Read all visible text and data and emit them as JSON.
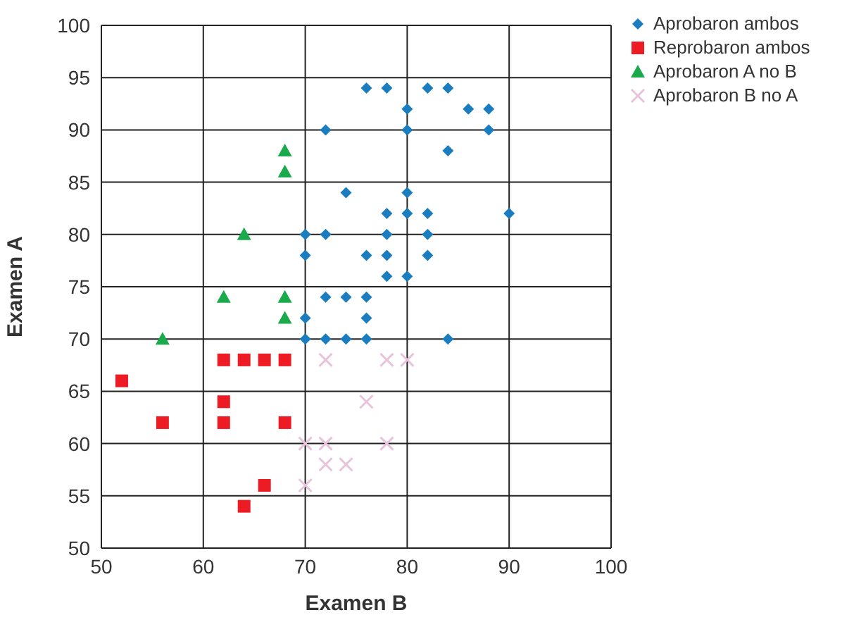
{
  "chart_data": {
    "type": "scatter",
    "xlabel": "Examen B",
    "ylabel": "Examen A",
    "xlim": [
      50,
      100
    ],
    "ylim": [
      50,
      100
    ],
    "xticks": [
      50,
      60,
      70,
      80,
      90,
      100
    ],
    "yticks": [
      50,
      55,
      60,
      65,
      70,
      75,
      80,
      85,
      90,
      95,
      100
    ],
    "grid": true,
    "legend": "right",
    "series": [
      {
        "name": "Aprobaron ambos",
        "color": "#1a7dc0",
        "marker": "diamond",
        "x": [
          76,
          78,
          82,
          84,
          80,
          86,
          88,
          72,
          80,
          88,
          84,
          74,
          80,
          78,
          80,
          82,
          90,
          70,
          72,
          78,
          82,
          70,
          76,
          78,
          82,
          78,
          80,
          72,
          74,
          76,
          70,
          76,
          70,
          72,
          74,
          76,
          84
        ],
        "values": [
          94,
          94,
          94,
          94,
          92,
          92,
          92,
          90,
          90,
          90,
          88,
          84,
          84,
          82,
          82,
          82,
          82,
          80,
          80,
          80,
          80,
          78,
          78,
          78,
          78,
          76,
          76,
          74,
          74,
          74,
          72,
          72,
          70,
          70,
          70,
          70,
          70
        ]
      },
      {
        "name": "Reprobaron ambos",
        "color": "#ed1c24",
        "marker": "square",
        "x": [
          62,
          64,
          66,
          68,
          52,
          62,
          56,
          62,
          68,
          66,
          64
        ],
        "values": [
          68,
          68,
          68,
          68,
          66,
          64,
          62,
          62,
          62,
          56,
          54
        ]
      },
      {
        "name": "Aprobaron A no B",
        "color": "#1aaa4b",
        "marker": "triangle",
        "x": [
          68,
          68,
          64,
          62,
          68,
          68,
          56
        ],
        "values": [
          88,
          86,
          80,
          74,
          74,
          72,
          70
        ]
      },
      {
        "name": "Aprobaron B no A",
        "color": "#e8c4dc",
        "marker": "cross",
        "x": [
          72,
          78,
          80,
          76,
          70,
          72,
          78,
          72,
          74,
          70
        ],
        "values": [
          68,
          68,
          68,
          64,
          60,
          60,
          60,
          58,
          58,
          56
        ]
      }
    ]
  }
}
